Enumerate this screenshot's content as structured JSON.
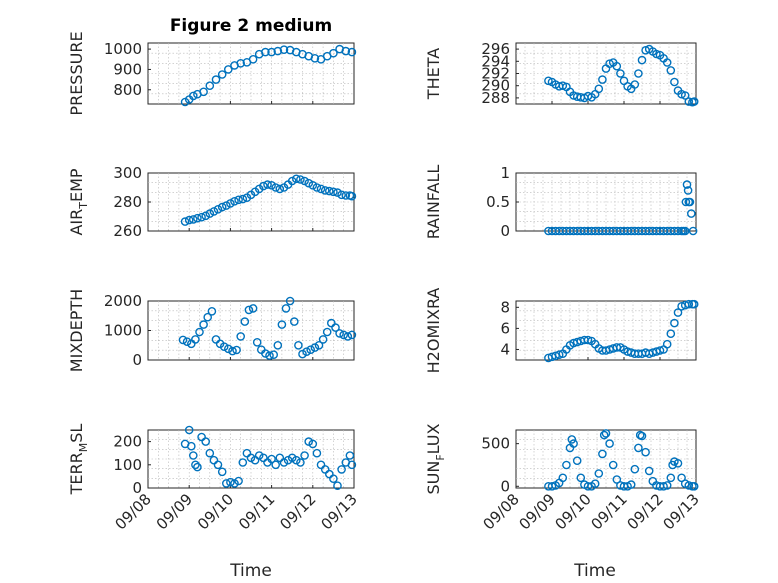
{
  "figure": {
    "title": "Figure 2 medium",
    "x_label": "Time",
    "x_ticks": [
      "09/08",
      "09/09",
      "09/10",
      "09/11",
      "09/12",
      "09/13"
    ],
    "accent": "#0072bd"
  },
  "chart_data": [
    {
      "type": "scatter",
      "id": "pressure",
      "title": "Figure 2 medium",
      "ylabel": "PRESSURE",
      "xlim": [
        0,
        5
      ],
      "ylim": [
        730,
        1030
      ],
      "yticks": [
        800,
        900,
        1000
      ],
      "ytick_labels": [
        "800",
        "900",
        "1000"
      ],
      "x": [
        0.9,
        1.0,
        1.1,
        1.2,
        1.35,
        1.5,
        1.65,
        1.8,
        1.95,
        2.1,
        2.25,
        2.4,
        2.55,
        2.7,
        2.85,
        3.0,
        3.15,
        3.3,
        3.45,
        3.6,
        3.75,
        3.9,
        4.05,
        4.2,
        4.35,
        4.5,
        4.65,
        4.8,
        4.95
      ],
      "y": [
        740,
        752,
        770,
        778,
        790,
        820,
        850,
        875,
        900,
        920,
        930,
        935,
        950,
        975,
        985,
        985,
        990,
        997,
        995,
        985,
        975,
        965,
        955,
        950,
        965,
        980,
        1000,
        990,
        985
      ]
    },
    {
      "type": "scatter",
      "id": "theta",
      "ylabel": "THETA",
      "xlim": [
        0,
        5
      ],
      "ylim": [
        287,
        297
      ],
      "yticks": [
        288,
        290,
        292,
        294,
        296
      ],
      "ytick_labels": [
        "288",
        "290",
        "292",
        "294",
        "296"
      ],
      "x": [
        0.9,
        1.0,
        1.1,
        1.2,
        1.3,
        1.4,
        1.5,
        1.6,
        1.7,
        1.8,
        1.9,
        2.0,
        2.1,
        2.2,
        2.3,
        2.4,
        2.5,
        2.6,
        2.7,
        2.8,
        2.9,
        3.0,
        3.1,
        3.2,
        3.3,
        3.4,
        3.5,
        3.6,
        3.7,
        3.8,
        3.9,
        4.0,
        4.1,
        4.2,
        4.3,
        4.4,
        4.5,
        4.6,
        4.7,
        4.8,
        4.9,
        4.95
      ],
      "y": [
        290.8,
        290.6,
        290.2,
        289.9,
        290.0,
        289.8,
        289.0,
        288.4,
        288.2,
        288.1,
        288.0,
        288.3,
        288.1,
        288.6,
        289.5,
        291.0,
        292.8,
        293.6,
        293.8,
        293.2,
        292.0,
        290.8,
        289.9,
        289.5,
        290.2,
        292.0,
        294.2,
        295.8,
        296.0,
        295.6,
        295.2,
        295.0,
        294.5,
        293.8,
        292.5,
        290.6,
        289.2,
        288.6,
        288.4,
        287.4,
        287.3,
        287.4
      ]
    },
    {
      "type": "scatter",
      "id": "air_temp",
      "ylabel": "AIR_TEMP",
      "xlim": [
        0,
        5
      ],
      "ylim": [
        260,
        300
      ],
      "yticks": [
        260,
        280,
        300
      ],
      "ytick_labels": [
        "260",
        "280",
        "300"
      ],
      "x": [
        0.9,
        1.0,
        1.1,
        1.2,
        1.3,
        1.4,
        1.5,
        1.6,
        1.7,
        1.8,
        1.9,
        2.0,
        2.1,
        2.2,
        2.3,
        2.4,
        2.5,
        2.6,
        2.7,
        2.8,
        2.9,
        3.0,
        3.1,
        3.2,
        3.3,
        3.4,
        3.5,
        3.6,
        3.7,
        3.8,
        3.9,
        4.0,
        4.1,
        4.2,
        4.3,
        4.4,
        4.5,
        4.6,
        4.7,
        4.8,
        4.9,
        4.95
      ],
      "y": [
        266.5,
        267.5,
        268.0,
        268.8,
        269.5,
        270.5,
        272.0,
        273.5,
        275.0,
        276.5,
        277.5,
        279.0,
        280.5,
        281.5,
        282.0,
        283.0,
        285.0,
        287.0,
        289.0,
        291.0,
        292.0,
        291.5,
        290.0,
        289.0,
        290.0,
        292.0,
        294.5,
        296.0,
        295.5,
        294.5,
        293.0,
        291.5,
        290.0,
        289.0,
        288.0,
        287.5,
        287.0,
        286.5,
        285.0,
        284.5,
        284.5,
        284.0
      ]
    },
    {
      "type": "scatter",
      "id": "rainfall",
      "ylabel": "RAINFALL",
      "xlim": [
        0,
        5
      ],
      "ylim": [
        0,
        1
      ],
      "yticks": [
        0,
        0.5,
        1
      ],
      "ytick_labels": [
        "0",
        "0.5",
        "1"
      ],
      "x": [
        0.9,
        1.0,
        1.1,
        1.2,
        1.3,
        1.4,
        1.5,
        1.6,
        1.7,
        1.8,
        1.9,
        2.0,
        2.1,
        2.2,
        2.3,
        2.4,
        2.5,
        2.6,
        2.7,
        2.8,
        2.9,
        3.0,
        3.1,
        3.2,
        3.3,
        3.4,
        3.5,
        3.6,
        3.7,
        3.8,
        3.9,
        4.0,
        4.1,
        4.2,
        4.3,
        4.4,
        4.5,
        4.6,
        4.65,
        4.7,
        4.72,
        4.75,
        4.78,
        4.8,
        4.83,
        4.87,
        4.92
      ],
      "y": [
        0,
        0,
        0,
        0,
        0,
        0,
        0,
        0,
        0,
        0,
        0,
        0,
        0,
        0,
        0,
        0,
        0,
        0,
        0,
        0,
        0,
        0,
        0,
        0,
        0,
        0,
        0,
        0,
        0,
        0,
        0,
        0,
        0,
        0,
        0,
        0,
        0,
        0,
        0,
        0,
        0.5,
        0.8,
        0.7,
        0.5,
        0.5,
        0.3,
        0
      ]
    },
    {
      "type": "scatter",
      "id": "mixdepth",
      "ylabel": "MIXDEPTH",
      "xlim": [
        0,
        5
      ],
      "ylim": [
        0,
        2000
      ],
      "yticks": [
        0,
        1000,
        2000
      ],
      "ytick_labels": [
        "0",
        "1000",
        "2000"
      ],
      "x": [
        0.85,
        0.95,
        1.05,
        1.15,
        1.25,
        1.35,
        1.45,
        1.55,
        1.65,
        1.75,
        1.85,
        1.95,
        2.05,
        2.15,
        2.25,
        2.35,
        2.45,
        2.55,
        2.65,
        2.75,
        2.85,
        2.95,
        3.05,
        3.15,
        3.25,
        3.35,
        3.45,
        3.55,
        3.65,
        3.75,
        3.85,
        3.95,
        4.05,
        4.15,
        4.25,
        4.35,
        4.45,
        4.55,
        4.65,
        4.75,
        4.85,
        4.95
      ],
      "y": [
        680,
        620,
        550,
        700,
        950,
        1200,
        1450,
        1650,
        700,
        550,
        450,
        380,
        300,
        340,
        800,
        1300,
        1700,
        1750,
        600,
        350,
        220,
        150,
        180,
        500,
        1200,
        1750,
        2000,
        1300,
        500,
        200,
        280,
        350,
        420,
        500,
        700,
        950,
        1250,
        1100,
        900,
        850,
        800,
        850
      ]
    },
    {
      "type": "scatter",
      "id": "h2omixra",
      "ylabel": "H2OMIXRA",
      "xlim": [
        0,
        5
      ],
      "ylim": [
        3,
        8.6
      ],
      "yticks": [
        4,
        6,
        8
      ],
      "ytick_labels": [
        "4",
        "6",
        "8"
      ],
      "x": [
        0.9,
        1.0,
        1.1,
        1.2,
        1.3,
        1.4,
        1.5,
        1.6,
        1.7,
        1.8,
        1.9,
        2.0,
        2.1,
        2.2,
        2.3,
        2.4,
        2.5,
        2.6,
        2.7,
        2.8,
        2.9,
        3.0,
        3.1,
        3.2,
        3.3,
        3.4,
        3.5,
        3.6,
        3.7,
        3.8,
        3.9,
        4.0,
        4.1,
        4.2,
        4.3,
        4.4,
        4.5,
        4.6,
        4.7,
        4.8,
        4.9,
        4.95
      ],
      "y": [
        3.2,
        3.3,
        3.4,
        3.5,
        3.6,
        4.0,
        4.4,
        4.6,
        4.7,
        4.8,
        4.9,
        4.9,
        4.8,
        4.5,
        4.1,
        3.9,
        3.9,
        4.0,
        4.1,
        4.2,
        4.2,
        4.0,
        3.8,
        3.7,
        3.6,
        3.6,
        3.6,
        3.7,
        3.6,
        3.7,
        3.8,
        3.9,
        4.0,
        4.5,
        5.5,
        6.5,
        7.5,
        8.1,
        8.2,
        8.3,
        8.3,
        8.3
      ]
    },
    {
      "type": "scatter",
      "id": "terr_msl",
      "ylabel": "TERR_MSL",
      "xlim": [
        0,
        5
      ],
      "ylim": [
        0,
        250
      ],
      "yticks": [
        0,
        100,
        200
      ],
      "ytick_labels": [
        "0",
        "100",
        "200"
      ],
      "x": [
        0.9,
        1.0,
        1.05,
        1.1,
        1.15,
        1.2,
        1.3,
        1.4,
        1.5,
        1.6,
        1.7,
        1.8,
        1.9,
        2.0,
        2.1,
        2.2,
        2.3,
        2.4,
        2.5,
        2.6,
        2.7,
        2.8,
        2.9,
        3.0,
        3.1,
        3.2,
        3.3,
        3.4,
        3.5,
        3.6,
        3.7,
        3.8,
        3.9,
        4.0,
        4.1,
        4.2,
        4.3,
        4.4,
        4.5,
        4.6,
        4.7,
        4.8,
        4.9,
        4.95
      ],
      "y": [
        190,
        250,
        180,
        140,
        100,
        90,
        220,
        200,
        150,
        120,
        100,
        70,
        20,
        25,
        20,
        30,
        110,
        150,
        130,
        120,
        140,
        130,
        110,
        125,
        100,
        130,
        110,
        120,
        130,
        120,
        110,
        140,
        200,
        190,
        150,
        100,
        80,
        60,
        40,
        10,
        80,
        110,
        140,
        100
      ]
    },
    {
      "type": "scatter",
      "id": "sun_flux",
      "ylabel": "SUN_FLUX",
      "xlim": [
        0,
        5
      ],
      "ylim": [
        -20,
        660
      ],
      "yticks": [
        0,
        500
      ],
      "ytick_labels": [
        "0",
        "500"
      ],
      "x": [
        0.9,
        1.0,
        1.1,
        1.2,
        1.3,
        1.4,
        1.5,
        1.55,
        1.6,
        1.7,
        1.8,
        1.9,
        2.0,
        2.1,
        2.2,
        2.3,
        2.4,
        2.45,
        2.5,
        2.6,
        2.7,
        2.8,
        2.9,
        3.0,
        3.1,
        3.2,
        3.3,
        3.4,
        3.45,
        3.5,
        3.6,
        3.7,
        3.8,
        3.9,
        4.0,
        4.1,
        4.2,
        4.3,
        4.35,
        4.4,
        4.5,
        4.6,
        4.7,
        4.8,
        4.9,
        4.95
      ],
      "y": [
        0,
        0,
        10,
        40,
        100,
        250,
        450,
        550,
        500,
        300,
        100,
        20,
        0,
        0,
        30,
        150,
        380,
        600,
        620,
        500,
        250,
        80,
        10,
        0,
        0,
        20,
        200,
        450,
        600,
        590,
        400,
        180,
        60,
        10,
        0,
        0,
        10,
        100,
        250,
        290,
        270,
        100,
        30,
        10,
        0,
        0
      ]
    }
  ]
}
